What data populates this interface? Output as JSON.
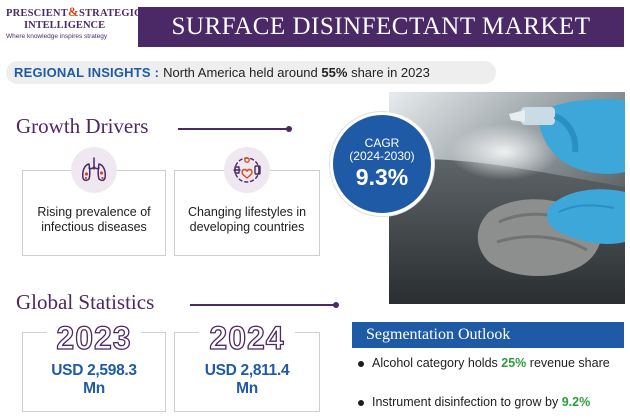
{
  "logo": {
    "line1_a": "PRESCIENT",
    "line1_amp": "&",
    "line1_b": "STRATEGIC",
    "line2": "INTELLIGENCE",
    "tagline": "Where knowledge inspires strategy"
  },
  "title": "SURFACE DISINFECTANT MARKET",
  "regional": {
    "label": "REGIONAL INSIGHTS :",
    "text_before": "North America held around",
    "highlight": "55%",
    "text_after": "share in 2023"
  },
  "growth_drivers": {
    "heading": "Growth Drivers",
    "cards": [
      {
        "icon": "lungs-virus-icon",
        "text": "Rising prevalence of infectious diseases"
      },
      {
        "icon": "lifestyle-icon",
        "text": "Changing lifestyles in developing countries"
      }
    ]
  },
  "cagr": {
    "label": "CAGR",
    "period": "(2024-2030)",
    "value": "9.3%"
  },
  "global_statistics": {
    "heading": "Global Statistics",
    "items": [
      {
        "year": "2023",
        "value_line1": "USD 2,598.3",
        "value_line2": "Mn"
      },
      {
        "year": "2024",
        "value_line1": "USD 2,811.4",
        "value_line2": "Mn"
      }
    ]
  },
  "segmentation": {
    "heading": "Segmentation Outlook",
    "items": [
      {
        "before": "Alcohol category holds",
        "highlight": "25%",
        "after": "revenue share"
      },
      {
        "before": "Instrument disinfection to grow by",
        "highlight": "9.2%",
        "after": ""
      }
    ]
  },
  "colors": {
    "purple": "#4b2866",
    "blue": "#1f5aa6",
    "green": "#2e9c3e",
    "orange": "#d84a1b"
  }
}
